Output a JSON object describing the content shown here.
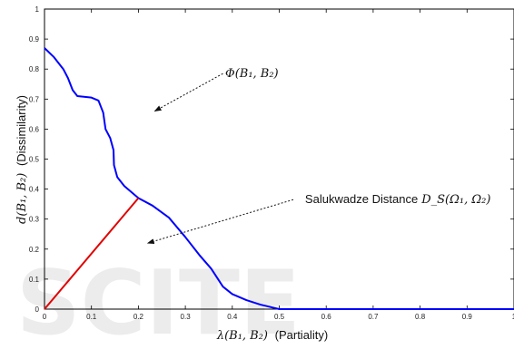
{
  "chart_data": {
    "type": "line",
    "xlabel_math": "λ(B₁, B₂)",
    "xlabel_text": "(Partiality)",
    "ylabel_math": "d(B₁, B₂)",
    "ylabel_text": "(Dissimilarity)",
    "xlim": [
      0,
      1
    ],
    "ylim": [
      0,
      1
    ],
    "x_ticks": [
      "0",
      "0.1",
      "0.2",
      "0.3",
      "0.4",
      "0.5",
      "0.6",
      "0.7",
      "0.8",
      "0.9",
      "1"
    ],
    "y_ticks": [
      "0",
      "0.1",
      "0.2",
      "0.3",
      "0.4",
      "0.5",
      "0.6",
      "0.7",
      "0.8",
      "0.9",
      "1"
    ],
    "grid": false,
    "series": [
      {
        "color": "#0000ff",
        "points": [
          [
            0,
            0.87
          ],
          [
            0.02,
            0.84
          ],
          [
            0.04,
            0.8
          ],
          [
            0.05,
            0.77
          ],
          [
            0.06,
            0.73
          ],
          [
            0.07,
            0.71
          ],
          [
            0.1,
            0.705
          ],
          [
            0.115,
            0.695
          ],
          [
            0.125,
            0.655
          ],
          [
            0.13,
            0.6
          ],
          [
            0.14,
            0.57
          ],
          [
            0.147,
            0.53
          ],
          [
            0.148,
            0.48
          ],
          [
            0.155,
            0.44
          ],
          [
            0.17,
            0.41
          ],
          [
            0.2,
            0.37
          ],
          [
            0.23,
            0.345
          ],
          [
            0.265,
            0.305
          ],
          [
            0.3,
            0.24
          ],
          [
            0.33,
            0.18
          ],
          [
            0.355,
            0.135
          ],
          [
            0.38,
            0.075
          ],
          [
            0.4,
            0.05
          ],
          [
            0.43,
            0.03
          ],
          [
            0.46,
            0.015
          ],
          [
            0.5,
            0.0
          ],
          [
            1.0,
            0.0
          ]
        ]
      },
      {
        "color": "#e00000",
        "points": [
          [
            0,
            0
          ],
          [
            0.2,
            0.37
          ]
        ]
      }
    ],
    "annotations": [
      {
        "label": "Φ(B₁, B₂)",
        "text_at": [
          0.385,
          0.785
        ],
        "arrow_from": [
          0.38,
          0.785
        ],
        "arrow_to": [
          0.235,
          0.66
        ]
      },
      {
        "label_text": "Salukwadze Distance",
        "label_math": "D_S(Ω₁, Ω₂)",
        "text_at": [
          0.555,
          0.365
        ],
        "arrow_from": [
          0.53,
          0.365
        ],
        "arrow_to": [
          0.22,
          0.22
        ]
      }
    ]
  },
  "watermark": "SCITE"
}
